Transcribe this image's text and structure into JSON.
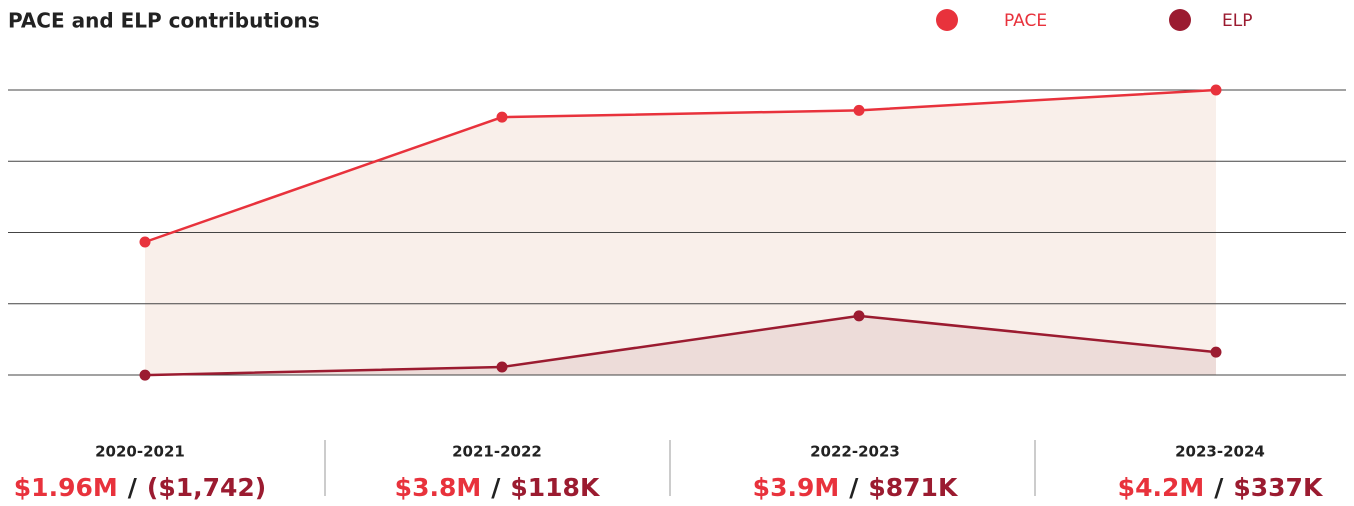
{
  "chart_data": {
    "type": "line",
    "title": "PACE and ELP contributions",
    "categories": [
      "2020-2021",
      "2021-2022",
      "2022-2023",
      "2023-2024"
    ],
    "series": [
      {
        "name": "PACE",
        "color": "#e8323c",
        "area": "#f9efea",
        "values": [
          1960000,
          3800000,
          3900000,
          4200000
        ],
        "value_labels": [
          "$1.96M",
          "$3.8M",
          "$3.9M",
          "$4.2M"
        ]
      },
      {
        "name": "ELP",
        "color": "#9b1b30",
        "area": "#eddcd9",
        "values": [
          -1742,
          118000,
          871000,
          337000
        ],
        "value_labels": [
          "($1,742)",
          "$118K",
          "$871K",
          "$337K"
        ]
      }
    ],
    "separator": "/",
    "ylim": [
      0,
      4200000
    ],
    "grid": true
  }
}
